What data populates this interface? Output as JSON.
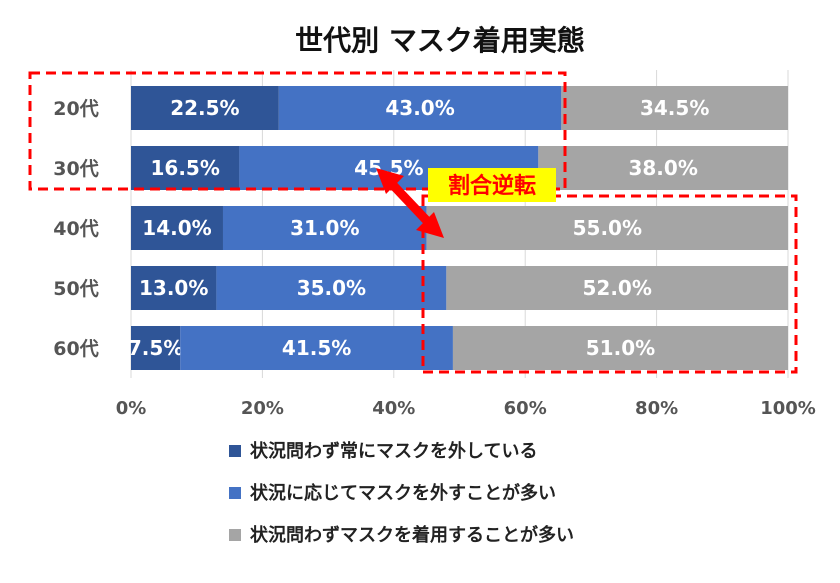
{
  "chart_data": {
    "type": "bar",
    "orientation": "horizontal",
    "stacked": true,
    "title": "世代別 マスク着用実態",
    "categories": [
      "20代",
      "30代",
      "40代",
      "50代",
      "60代"
    ],
    "series": [
      {
        "name": "状況問わず常にマスクを外している",
        "values": [
          22.5,
          16.5,
          14.0,
          13.0,
          7.5
        ],
        "color": "#2f5597"
      },
      {
        "name": "状況に応じてマスクを外すことが多い",
        "values": [
          43.0,
          45.5,
          31.0,
          35.0,
          41.5
        ],
        "color": "#4472c4"
      },
      {
        "name": "状況問わずマスクを着用することが多い",
        "values": [
          34.5,
          38.0,
          55.0,
          52.0,
          51.0
        ],
        "color": "#a5a5a5"
      }
    ],
    "xlim": [
      0,
      100
    ],
    "xticks": [
      "0%",
      "20%",
      "40%",
      "60%",
      "80%",
      "100%"
    ],
    "grid": true,
    "legend_position": "bottom",
    "annotation": {
      "text": "割合逆転",
      "color": "#ff0000",
      "background": "#ffff00"
    }
  }
}
